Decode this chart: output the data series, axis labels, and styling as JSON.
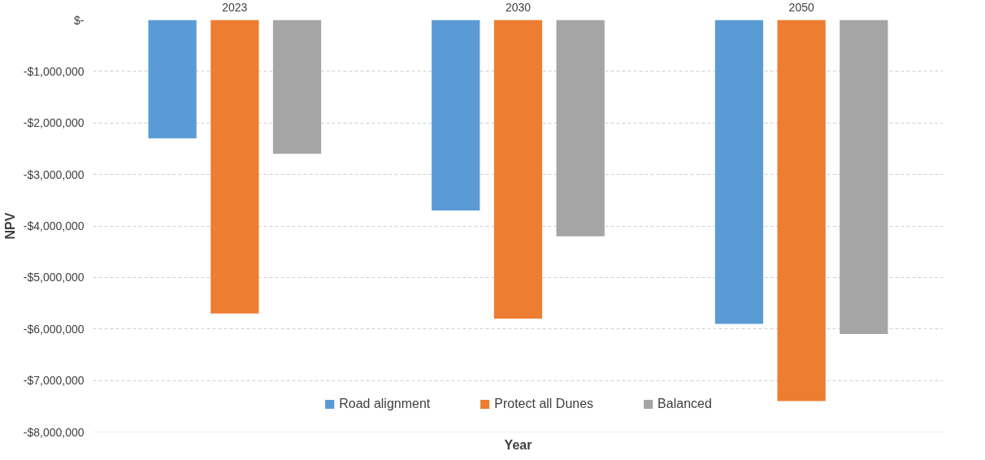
{
  "chart_data": {
    "type": "bar",
    "xlabel": "Year",
    "ylabel": "NPV",
    "categories": [
      "2023",
      "2030",
      "2050"
    ],
    "series": [
      {
        "name": "Road alignment",
        "color": "#5b9bd5",
        "values": [
          -2300000,
          -3700000,
          -5900000
        ]
      },
      {
        "name": "Protect all Dunes",
        "color": "#ed7d31",
        "values": [
          -5700000,
          -5800000,
          -7400000
        ]
      },
      {
        "name": "Balanced",
        "color": "#a5a5a5",
        "values": [
          -2600000,
          -4200000,
          -6100000
        ]
      }
    ],
    "ylim": [
      -8000000,
      0
    ],
    "yticks": [
      {
        "value": 0,
        "label": "$-"
      },
      {
        "value": -1000000,
        "label": "-$1,000,000"
      },
      {
        "value": -2000000,
        "label": "-$2,000,000"
      },
      {
        "value": -3000000,
        "label": "-$3,000,000"
      },
      {
        "value": -4000000,
        "label": "-$4,000,000"
      },
      {
        "value": -5000000,
        "label": "-$5,000,000"
      },
      {
        "value": -6000000,
        "label": "-$6,000,000"
      },
      {
        "value": -7000000,
        "label": "-$7,000,000"
      },
      {
        "value": -8000000,
        "label": "-$8,000,000"
      }
    ],
    "grid": "y",
    "legend": "bottom"
  }
}
